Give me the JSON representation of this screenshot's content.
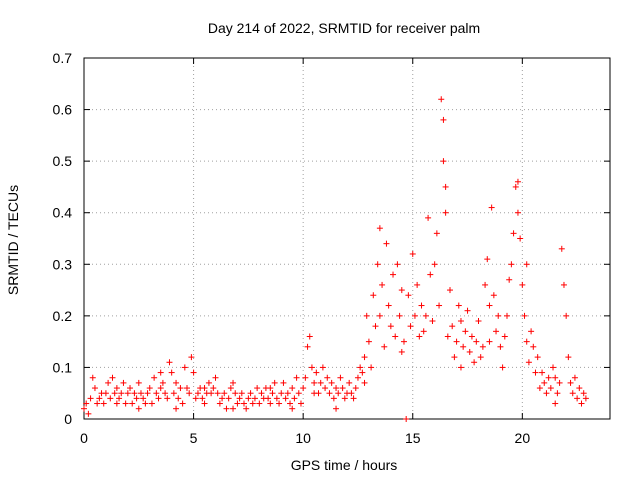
{
  "chart_data": {
    "type": "scatter",
    "title": "Day 214 of 2022, SRMTID for receiver palm",
    "xlabel": "GPS time / hours",
    "ylabel": "SRMTID / TECUs",
    "xlim": [
      0,
      24
    ],
    "ylim": [
      0,
      0.7
    ],
    "x_ticks": [
      0,
      5,
      10,
      15,
      20
    ],
    "x_tick_labels": [
      "0",
      "5",
      "10",
      "15",
      "20"
    ],
    "y_ticks": [
      0,
      0.1,
      0.2,
      0.3,
      0.4,
      0.5,
      0.6,
      0.7
    ],
    "y_tick_labels": [
      "0",
      "0.1",
      "0.2",
      "0.3",
      "0.4",
      "0.5",
      "0.6",
      "0.7"
    ],
    "grid": true,
    "marker": "+",
    "marker_color": "#ff0000",
    "series": [
      {
        "name": "SRMTID",
        "points": [
          [
            0.0,
            0.02
          ],
          [
            0.1,
            0.03
          ],
          [
            0.2,
            0.01
          ],
          [
            0.3,
            0.04
          ],
          [
            0.4,
            0.08
          ],
          [
            0.5,
            0.06
          ],
          [
            0.6,
            0.03
          ],
          [
            0.7,
            0.04
          ],
          [
            0.8,
            0.05
          ],
          [
            0.9,
            0.03
          ],
          [
            1.0,
            0.05
          ],
          [
            1.1,
            0.07
          ],
          [
            1.2,
            0.04
          ],
          [
            1.3,
            0.08
          ],
          [
            1.4,
            0.05
          ],
          [
            1.5,
            0.06
          ],
          [
            1.6,
            0.04
          ],
          [
            1.7,
            0.05
          ],
          [
            1.8,
            0.07
          ],
          [
            1.9,
            0.03
          ],
          [
            2.0,
            0.05
          ],
          [
            2.1,
            0.06
          ],
          [
            2.2,
            0.03
          ],
          [
            2.3,
            0.05
          ],
          [
            2.4,
            0.04
          ],
          [
            2.5,
            0.07
          ],
          [
            2.6,
            0.05
          ],
          [
            2.7,
            0.04
          ],
          [
            2.8,
            0.03
          ],
          [
            2.9,
            0.05
          ],
          [
            3.0,
            0.06
          ],
          [
            3.1,
            0.03
          ],
          [
            3.2,
            0.08
          ],
          [
            3.3,
            0.05
          ],
          [
            3.4,
            0.04
          ],
          [
            3.5,
            0.06
          ],
          [
            3.6,
            0.07
          ],
          [
            3.7,
            0.05
          ],
          [
            3.8,
            0.04
          ],
          [
            3.9,
            0.11
          ],
          [
            4.0,
            0.09
          ],
          [
            4.1,
            0.05
          ],
          [
            4.2,
            0.07
          ],
          [
            4.3,
            0.04
          ],
          [
            4.4,
            0.06
          ],
          [
            4.5,
            0.03
          ],
          [
            4.6,
            0.1
          ],
          [
            4.7,
            0.06
          ],
          [
            4.8,
            0.05
          ],
          [
            4.9,
            0.12
          ],
          [
            5.0,
            0.09
          ],
          [
            5.1,
            0.04
          ],
          [
            5.2,
            0.05
          ],
          [
            5.3,
            0.06
          ],
          [
            5.4,
            0.04
          ],
          [
            5.5,
            0.03
          ],
          [
            5.6,
            0.05
          ],
          [
            5.7,
            0.07
          ],
          [
            5.8,
            0.05
          ],
          [
            5.9,
            0.06
          ],
          [
            6.0,
            0.08
          ],
          [
            6.1,
            0.05
          ],
          [
            6.2,
            0.03
          ],
          [
            6.3,
            0.04
          ],
          [
            6.4,
            0.05
          ],
          [
            6.5,
            0.02
          ],
          [
            6.6,
            0.04
          ],
          [
            6.7,
            0.06
          ],
          [
            6.8,
            0.07
          ],
          [
            6.9,
            0.05
          ],
          [
            7.0,
            0.03
          ],
          [
            7.1,
            0.04
          ],
          [
            7.2,
            0.05
          ],
          [
            7.3,
            0.03
          ],
          [
            7.4,
            0.02
          ],
          [
            7.5,
            0.04
          ],
          [
            7.6,
            0.05
          ],
          [
            7.7,
            0.03
          ],
          [
            7.8,
            0.04
          ],
          [
            7.9,
            0.06
          ],
          [
            8.0,
            0.03
          ],
          [
            8.1,
            0.05
          ],
          [
            8.2,
            0.04
          ],
          [
            8.3,
            0.06
          ],
          [
            8.4,
            0.04
          ],
          [
            8.5,
            0.03
          ],
          [
            8.6,
            0.05
          ],
          [
            8.7,
            0.07
          ],
          [
            8.8,
            0.04
          ],
          [
            8.9,
            0.03
          ],
          [
            9.0,
            0.05
          ],
          [
            9.1,
            0.07
          ],
          [
            9.2,
            0.04
          ],
          [
            9.3,
            0.05
          ],
          [
            9.4,
            0.03
          ],
          [
            9.5,
            0.06
          ],
          [
            9.6,
            0.04
          ],
          [
            9.7,
            0.08
          ],
          [
            9.8,
            0.05
          ],
          [
            9.9,
            0.03
          ],
          [
            10.0,
            0.06
          ],
          [
            10.1,
            0.08
          ],
          [
            10.2,
            0.14
          ],
          [
            10.3,
            0.16
          ],
          [
            10.4,
            0.1
          ],
          [
            10.5,
            0.07
          ],
          [
            10.6,
            0.09
          ],
          [
            10.7,
            0.05
          ],
          [
            10.8,
            0.07
          ],
          [
            10.9,
            0.1
          ],
          [
            11.0,
            0.06
          ],
          [
            11.1,
            0.08
          ],
          [
            11.2,
            0.05
          ],
          [
            11.3,
            0.07
          ],
          [
            11.4,
            0.04
          ],
          [
            11.5,
            0.06
          ],
          [
            11.6,
            0.05
          ],
          [
            11.7,
            0.08
          ],
          [
            11.8,
            0.06
          ],
          [
            11.9,
            0.04
          ],
          [
            12.0,
            0.05
          ],
          [
            12.1,
            0.07
          ],
          [
            12.2,
            0.05
          ],
          [
            12.3,
            0.04
          ],
          [
            12.4,
            0.06
          ],
          [
            12.5,
            0.08
          ],
          [
            12.6,
            0.1
          ],
          [
            12.7,
            0.09
          ],
          [
            12.8,
            0.12
          ],
          [
            12.9,
            0.2
          ],
          [
            13.0,
            0.15
          ],
          [
            13.1,
            0.1
          ],
          [
            13.2,
            0.24
          ],
          [
            13.3,
            0.18
          ],
          [
            13.4,
            0.3
          ],
          [
            13.5,
            0.2
          ],
          [
            13.6,
            0.26
          ],
          [
            13.7,
            0.14
          ],
          [
            13.8,
            0.34
          ],
          [
            13.9,
            0.22
          ],
          [
            14.0,
            0.18
          ],
          [
            14.1,
            0.28
          ],
          [
            14.2,
            0.16
          ],
          [
            14.3,
            0.3
          ],
          [
            14.4,
            0.2
          ],
          [
            14.5,
            0.25
          ],
          [
            14.6,
            0.15
          ],
          [
            14.7,
            0.0
          ],
          [
            14.8,
            0.24
          ],
          [
            14.9,
            0.18
          ],
          [
            15.0,
            0.32
          ],
          [
            15.1,
            0.2
          ],
          [
            15.2,
            0.26
          ],
          [
            15.3,
            0.16
          ],
          [
            15.4,
            0.22
          ],
          [
            15.5,
            0.17
          ],
          [
            15.6,
            0.2
          ],
          [
            15.7,
            0.39
          ],
          [
            15.8,
            0.28
          ],
          [
            15.9,
            0.19
          ],
          [
            16.0,
            0.3
          ],
          [
            16.1,
            0.36
          ],
          [
            16.2,
            0.22
          ],
          [
            16.3,
            0.62
          ],
          [
            16.4,
            0.5
          ],
          [
            16.5,
            0.4
          ],
          [
            16.6,
            0.16
          ],
          [
            16.7,
            0.25
          ],
          [
            16.8,
            0.18
          ],
          [
            16.9,
            0.12
          ],
          [
            17.0,
            0.15
          ],
          [
            17.1,
            0.22
          ],
          [
            17.2,
            0.19
          ],
          [
            17.3,
            0.14
          ],
          [
            17.4,
            0.17
          ],
          [
            17.5,
            0.21
          ],
          [
            17.6,
            0.13
          ],
          [
            17.7,
            0.16
          ],
          [
            17.8,
            0.11
          ],
          [
            17.9,
            0.15
          ],
          [
            18.0,
            0.19
          ],
          [
            18.1,
            0.12
          ],
          [
            18.2,
            0.14
          ],
          [
            18.3,
            0.26
          ],
          [
            18.4,
            0.31
          ],
          [
            18.5,
            0.22
          ],
          [
            18.6,
            0.41
          ],
          [
            18.7,
            0.24
          ],
          [
            18.8,
            0.17
          ],
          [
            18.9,
            0.2
          ],
          [
            19.0,
            0.14
          ],
          [
            19.1,
            0.1
          ],
          [
            19.2,
            0.16
          ],
          [
            19.3,
            0.2
          ],
          [
            19.4,
            0.27
          ],
          [
            19.5,
            0.3
          ],
          [
            19.6,
            0.36
          ],
          [
            19.7,
            0.45
          ],
          [
            19.8,
            0.4
          ],
          [
            19.9,
            0.35
          ],
          [
            20.0,
            0.26
          ],
          [
            20.1,
            0.2
          ],
          [
            20.2,
            0.15
          ],
          [
            20.3,
            0.11
          ],
          [
            20.4,
            0.17
          ],
          [
            20.5,
            0.14
          ],
          [
            20.6,
            0.09
          ],
          [
            20.7,
            0.12
          ],
          [
            20.8,
            0.06
          ],
          [
            20.9,
            0.09
          ],
          [
            21.0,
            0.07
          ],
          [
            21.1,
            0.05
          ],
          [
            21.2,
            0.08
          ],
          [
            21.3,
            0.06
          ],
          [
            21.4,
            0.1
          ],
          [
            21.5,
            0.08
          ],
          [
            21.6,
            0.05
          ],
          [
            21.7,
            0.07
          ],
          [
            21.8,
            0.33
          ],
          [
            21.9,
            0.26
          ],
          [
            22.0,
            0.2
          ],
          [
            22.1,
            0.12
          ],
          [
            22.2,
            0.07
          ],
          [
            22.3,
            0.05
          ],
          [
            22.4,
            0.08
          ],
          [
            22.5,
            0.04
          ],
          [
            22.6,
            0.06
          ],
          [
            22.7,
            0.03
          ],
          [
            22.8,
            0.05
          ],
          [
            22.9,
            0.04
          ],
          [
            1.5,
            0.03
          ],
          [
            3.5,
            0.09
          ],
          [
            5.5,
            0.06
          ],
          [
            8.5,
            0.06
          ],
          [
            10.5,
            0.05
          ],
          [
            12.8,
            0.07
          ],
          [
            13.5,
            0.37
          ],
          [
            14.5,
            0.13
          ],
          [
            16.4,
            0.58
          ],
          [
            16.5,
            0.45
          ],
          [
            17.2,
            0.1
          ],
          [
            18.5,
            0.15
          ],
          [
            19.8,
            0.46
          ],
          [
            20.2,
            0.3
          ],
          [
            21.5,
            0.03
          ],
          [
            2.5,
            0.02
          ],
          [
            4.2,
            0.02
          ],
          [
            6.8,
            0.02
          ],
          [
            9.5,
            0.02
          ],
          [
            11.5,
            0.02
          ]
        ]
      }
    ]
  }
}
